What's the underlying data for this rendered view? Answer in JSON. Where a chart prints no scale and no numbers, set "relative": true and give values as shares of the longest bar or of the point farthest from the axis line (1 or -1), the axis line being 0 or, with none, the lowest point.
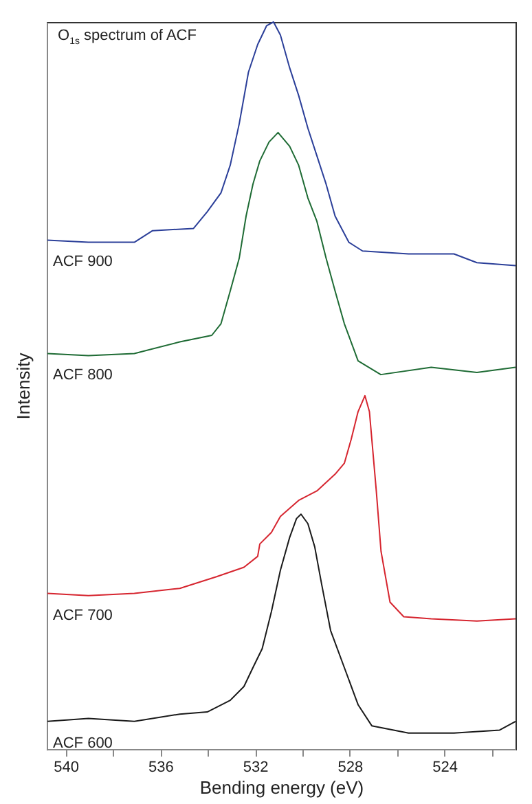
{
  "chart_data": {
    "type": "line",
    "title": "O$_{1s}$ spectrum of ACF",
    "xlabel": "Bending energy (eV)",
    "ylabel": "Intensity",
    "relative": true,
    "grid": false,
    "tick_labels": "x",
    "xlim": [
      540.8,
      521
    ],
    "xticks": [
      540,
      {
        "value": 538,
        "label": null
      },
      536,
      {
        "value": 534,
        "label": null
      },
      532,
      {
        "value": 530,
        "label": null
      },
      528,
      {
        "value": 526,
        "label": null
      },
      524,
      {
        "value": 522,
        "label": null
      }
    ],
    "series": [
      {
        "name": "ACF 900",
        "color": "#2b3f99",
        "x": [
          540.77,
          539.04,
          537.1,
          536.33,
          534.6,
          534.02,
          533.44,
          533.05,
          532.67,
          532.28,
          531.89,
          531.51,
          531.22,
          530.93,
          530.54,
          530.16,
          529.77,
          529.39,
          529.0,
          528.62,
          528.04,
          527.46,
          525.52,
          523.6,
          522.63,
          521.0
        ],
        "values": [
          0.7,
          0.697,
          0.697,
          0.713,
          0.716,
          0.739,
          0.765,
          0.803,
          0.86,
          0.931,
          0.969,
          0.995,
          1,
          0.982,
          0.937,
          0.899,
          0.854,
          0.816,
          0.777,
          0.733,
          0.697,
          0.685,
          0.681,
          0.681,
          0.669,
          0.665
        ]
      },
      {
        "name": "ACF 800",
        "color": "#1e6b34",
        "x": [
          540.77,
          539.04,
          537.1,
          535.18,
          533.83,
          533.44,
          533.05,
          532.67,
          532.38,
          532.09,
          531.8,
          531.41,
          531.03,
          530.54,
          530.16,
          529.77,
          529.39,
          529.0,
          528.62,
          528.23,
          527.65,
          526.69,
          524.56,
          522.63,
          521.0
        ],
        "values": [
          0.544,
          0.541,
          0.544,
          0.56,
          0.569,
          0.585,
          0.63,
          0.675,
          0.733,
          0.777,
          0.809,
          0.835,
          0.848,
          0.829,
          0.803,
          0.758,
          0.726,
          0.675,
          0.63,
          0.585,
          0.534,
          0.515,
          0.525,
          0.518,
          0.525
        ]
      },
      {
        "name": "ACF 700",
        "color": "#d6252f",
        "x": [
          540.77,
          539.04,
          537.1,
          535.18,
          533.63,
          532.47,
          531.89,
          531.8,
          531.31,
          530.93,
          530.16,
          529.39,
          528.62,
          528.23,
          527.94,
          527.65,
          527.36,
          527.17,
          526.88,
          526.68,
          526.3,
          525.72,
          524.56,
          522.63,
          521.0
        ],
        "values": [
          0.214,
          0.211,
          0.214,
          0.221,
          0.237,
          0.25,
          0.265,
          0.282,
          0.298,
          0.32,
          0.342,
          0.355,
          0.378,
          0.393,
          0.426,
          0.464,
          0.486,
          0.464,
          0.355,
          0.272,
          0.202,
          0.182,
          0.179,
          0.176,
          0.179
        ]
      },
      {
        "name": "ACF 600",
        "color": "#1a1a1a",
        "x": [
          540.77,
          539.04,
          537.1,
          535.18,
          534.02,
          533.05,
          532.47,
          532.09,
          531.7,
          531.31,
          530.93,
          530.54,
          530.25,
          530.06,
          529.77,
          529.48,
          529.19,
          528.81,
          528.23,
          527.65,
          527.07,
          525.52,
          523.6,
          521.67,
          521.0
        ],
        "values": [
          0.038,
          0.042,
          0.038,
          0.048,
          0.051,
          0.067,
          0.086,
          0.112,
          0.138,
          0.189,
          0.246,
          0.291,
          0.317,
          0.323,
          0.31,
          0.278,
          0.227,
          0.163,
          0.112,
          0.061,
          0.032,
          0.022,
          0.022,
          0.026,
          0.038
        ]
      }
    ]
  }
}
